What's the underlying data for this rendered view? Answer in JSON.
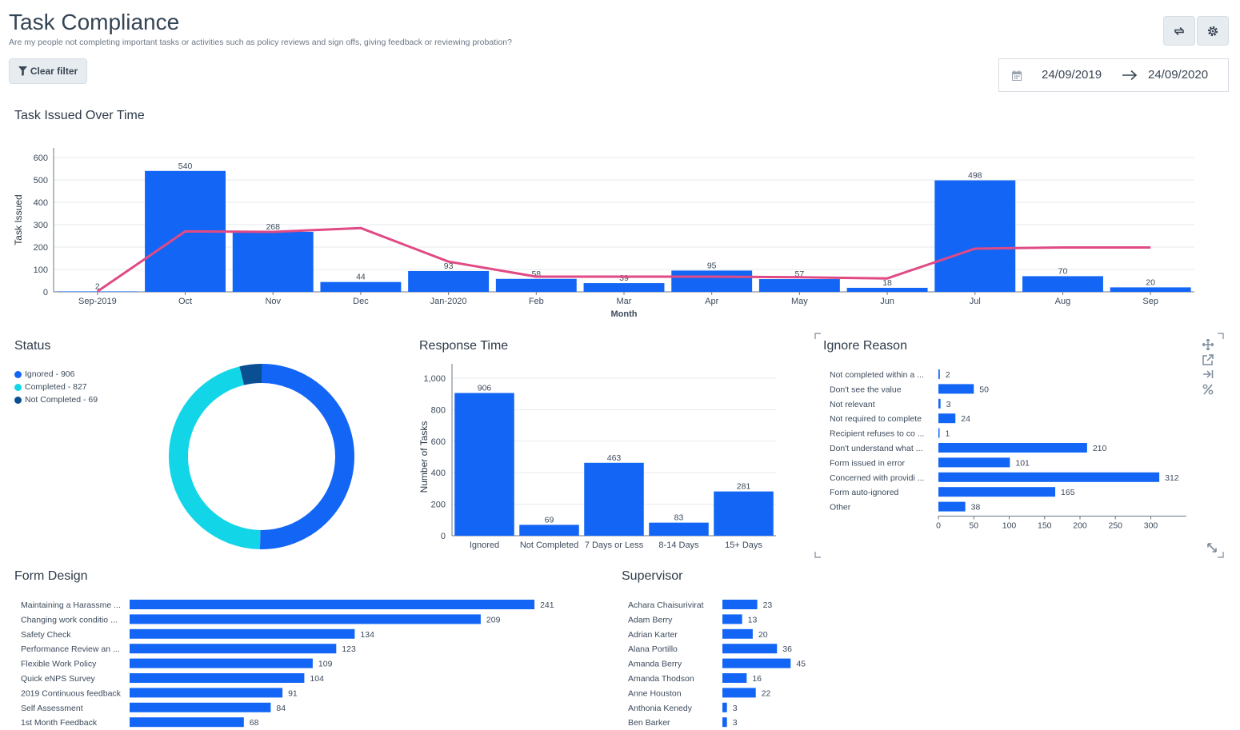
{
  "header": {
    "title": "Task Compliance",
    "subtitle": "Are my people not completing important tasks or activities such as policy reviews and sign offs, giving feedback or reviewing probation?",
    "clear_filter_label": "Clear filter",
    "date_start": "24/09/2019",
    "date_end": "24/09/2020",
    "icons": [
      "refresh-icon",
      "gear-icon",
      "calendar-icon",
      "arrow-right-icon",
      "filter-icon"
    ]
  },
  "colors": {
    "bar": "#1366f5",
    "line": "#e04a85",
    "donut_ignored": "#1366f5",
    "donut_completed": "#12d6e8",
    "donut_not_completed": "#0a4f91"
  },
  "cards": {
    "task_issued_title": "Task Issued Over Time",
    "status_title": "Status",
    "response_title": "Response Time",
    "ignore_title": "Ignore Reason",
    "form_title": "Form Design",
    "supervisor_title": "Supervisor"
  },
  "status_legend": [
    "Ignored - 906",
    "Completed - 827",
    "Not Completed - 69"
  ],
  "chart_data": [
    {
      "id": "task_issued",
      "type": "bar",
      "title": "Task Issued Over Time",
      "xlabel": "Month",
      "ylabel": "Task Issued",
      "ylim": [
        0,
        600
      ],
      "yticks": [
        0,
        100,
        200,
        300,
        400,
        500,
        600
      ],
      "categories": [
        "Sep-2019",
        "Oct",
        "Nov",
        "Dec",
        "Jan-2020",
        "Feb",
        "Mar",
        "Apr",
        "May",
        "Jun",
        "Jul",
        "Aug",
        "Sep"
      ],
      "values": [
        2,
        540,
        268,
        44,
        93,
        58,
        39,
        95,
        57,
        18,
        498,
        70,
        20
      ],
      "line_values": [
        2,
        270,
        268,
        285,
        135,
        68,
        68,
        68,
        65,
        60,
        193,
        198,
        198
      ],
      "grid": true
    },
    {
      "id": "status",
      "type": "pie",
      "title": "Status",
      "categories": [
        "Ignored",
        "Completed",
        "Not Completed"
      ],
      "values": [
        906,
        827,
        69
      ],
      "legend": "top-left"
    },
    {
      "id": "response_time",
      "type": "bar",
      "title": "Response Time",
      "ylabel": "Number of Tasks",
      "ylim": [
        0,
        1000
      ],
      "yticks": [
        "0",
        "200",
        "400",
        "600",
        "800",
        "1,000"
      ],
      "categories": [
        "Ignored",
        "Not Completed",
        "7 Days or Less",
        "8-14 Days",
        "15+ Days"
      ],
      "values": [
        906,
        69,
        463,
        83,
        281
      ],
      "grid": true
    },
    {
      "id": "ignore_reason",
      "type": "bar",
      "orientation": "horizontal",
      "title": "Ignore Reason",
      "xlim": [
        0,
        350
      ],
      "xticks": [
        0,
        50,
        100,
        150,
        200,
        250,
        300
      ],
      "categories": [
        "Not completed within a ...",
        "Don't see the value",
        "Not relevant",
        "Not required to complete",
        "Recipient refuses to co ...",
        "Don't understand what ...",
        "Form issued in error",
        "Concerned with providi ...",
        "Form auto-ignored",
        "Other"
      ],
      "values": [
        2,
        50,
        3,
        24,
        1,
        210,
        101,
        312,
        165,
        38
      ]
    },
    {
      "id": "form_design",
      "type": "bar",
      "orientation": "horizontal",
      "title": "Form Design",
      "categories": [
        "Maintaining a Harassme ...",
        "Changing work conditio ...",
        "Safety Check",
        "Performance Review an ...",
        "Flexible Work Policy",
        "Quick eNPS Survey",
        "2019 Continuous feedback",
        "Self Assessment",
        "1st Month Feedback"
      ],
      "values": [
        241,
        209,
        134,
        123,
        109,
        104,
        91,
        84,
        68
      ]
    },
    {
      "id": "supervisor",
      "type": "bar",
      "orientation": "horizontal",
      "title": "Supervisor",
      "categories": [
        "Achara Chaisurivirat",
        "Adam Berry",
        "Adrian Karter",
        "Alana Portillo",
        "Amanda Berry",
        "Amanda Thodson",
        "Anne Houston",
        "Anthonia Kenedy",
        "Ben Barker"
      ],
      "values": [
        23,
        13,
        20,
        36,
        45,
        16,
        22,
        3,
        3
      ]
    }
  ]
}
